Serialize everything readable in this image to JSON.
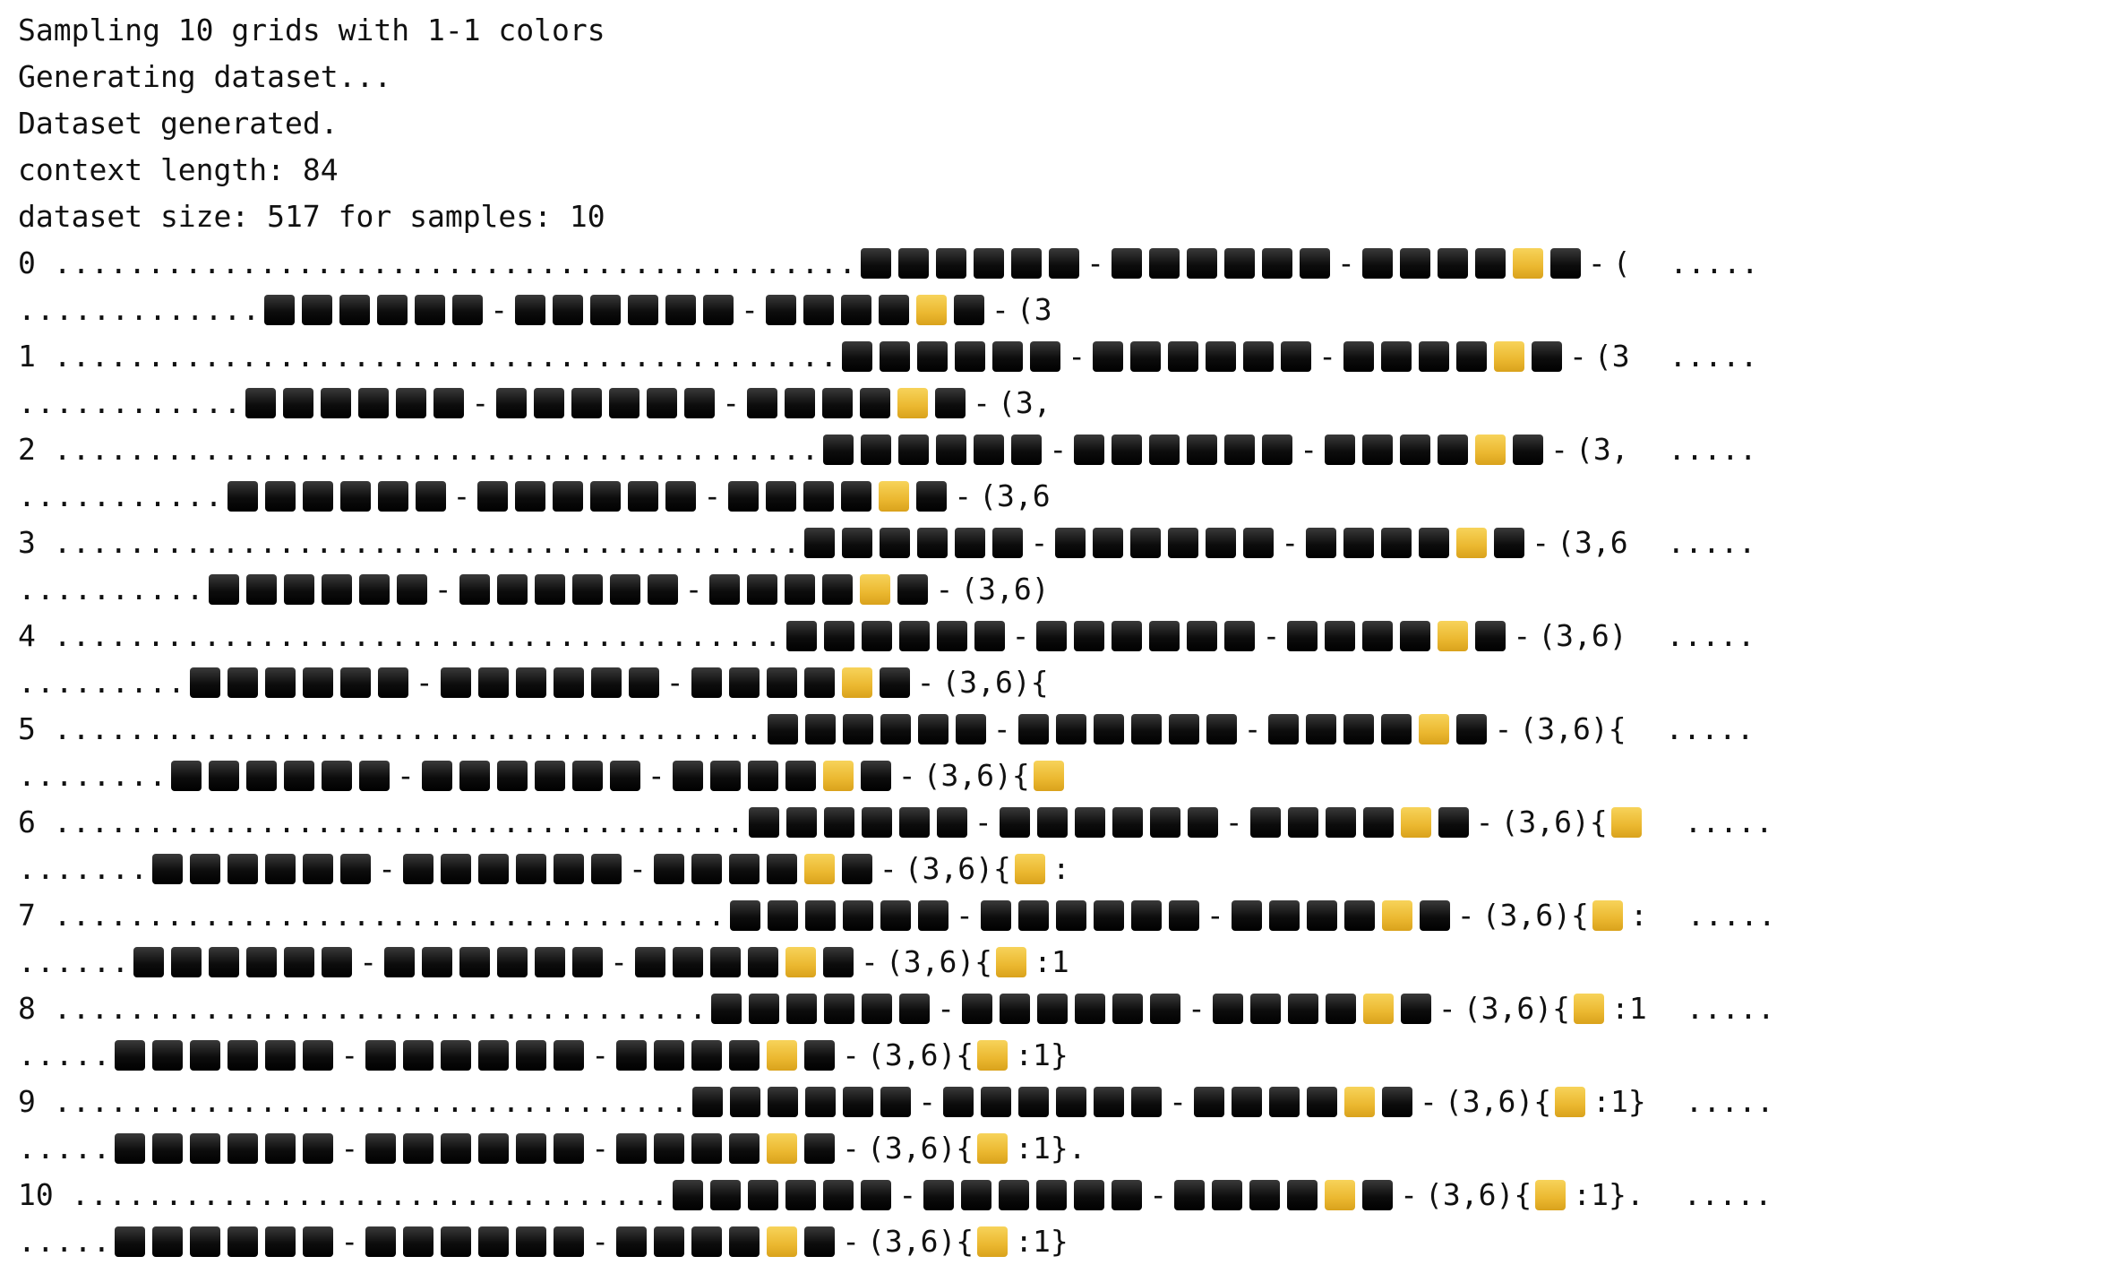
{
  "colors": {
    "black_cell": "#000000",
    "yellow_cell": "#EBB830",
    "background": "#FFFFFF"
  },
  "log": [
    "Sampling 10 grids with 1-1 colors",
    "Generating dataset...",
    "Dataset generated.",
    "context length: 84",
    "dataset size: 517 for samples: 10"
  ],
  "grid": "BBBBBB-BBBBBB-BBBBYB-",
  "samples": [
    {
      "index": "0",
      "a_suffix": "(",
      "a_tail": ".....",
      "b_suffix": "(3"
    },
    {
      "index": "1",
      "a_suffix": "(3",
      "a_tail": ".....",
      "b_suffix": "(3,"
    },
    {
      "index": "2",
      "a_suffix": "(3,",
      "a_tail": ".....",
      "b_suffix": "(3,6"
    },
    {
      "index": "3",
      "a_suffix": "(3,6",
      "a_tail": ".....",
      "b_suffix": "(3,6)"
    },
    {
      "index": "4",
      "a_suffix": "(3,6)",
      "a_tail": ".....",
      "b_suffix": "(3,6){"
    },
    {
      "index": "5",
      "a_suffix": "(3,6){",
      "a_tail": ".....",
      "b_suffix": "(3,6){Y"
    },
    {
      "index": "6",
      "a_suffix": "(3,6){Y",
      "a_tail": ".....",
      "b_suffix": "(3,6){Y:"
    },
    {
      "index": "7",
      "a_suffix": "(3,6){Y:",
      "a_tail": ".....",
      "b_suffix": "(3,6){Y:1"
    },
    {
      "index": "8",
      "a_suffix": "(3,6){Y:1",
      "a_tail": ".....",
      "b_suffix": "(3,6){Y:1}"
    },
    {
      "index": "9",
      "a_suffix": "(3,6){Y:1}",
      "a_tail": ".....",
      "b_suffix": "(3,6){Y:1}."
    },
    {
      "index": "10",
      "a_suffix": "(3,6){Y:1}.",
      "a_tail": ".....",
      "b_suffix": "(3,6){Y:1}"
    }
  ]
}
